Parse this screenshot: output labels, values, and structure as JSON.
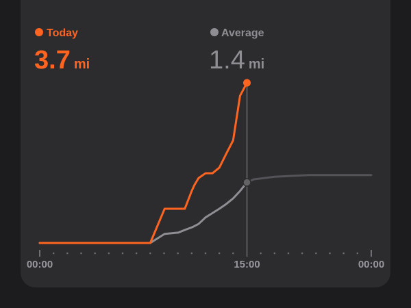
{
  "chart_data": {
    "type": "line",
    "x": [
      0,
      8,
      9.04,
      10.03,
      10.5,
      11,
      11.2,
      11.5,
      12,
      12.5,
      13,
      13.5,
      14,
      14.5,
      15,
      15.5,
      17,
      19.5,
      24
    ],
    "series": [
      {
        "name": "Today",
        "color": "#ff6421",
        "total": 3.7,
        "unit": "mi",
        "values": [
          0,
          0,
          0.79,
          0.79,
          0.79,
          1.2,
          1.34,
          1.5,
          1.61,
          1.61,
          1.74,
          2.06,
          2.37,
          3.4,
          3.7,
          null,
          null,
          null,
          null
        ]
      },
      {
        "name": "Average",
        "color": "#8e8e93",
        "total": 1.4,
        "unit": "mi",
        "values": [
          0,
          0,
          0.21,
          0.24,
          0.3,
          0.36,
          0.39,
          0.44,
          0.59,
          0.69,
          0.79,
          0.9,
          1.03,
          1.2,
          1.4,
          1.47,
          1.53,
          1.57,
          1.57
        ]
      }
    ],
    "xlim": [
      0,
      24
    ],
    "ylim": [
      0,
      3.7
    ],
    "xticks": [
      {
        "value": 0,
        "label": "00:00"
      },
      {
        "value": 15,
        "label": "15:00"
      },
      {
        "value": 24,
        "label": "00:00"
      }
    ],
    "minor_xticks": [
      1,
      2,
      3,
      4,
      5,
      6,
      7,
      8,
      9,
      10,
      11,
      12,
      13,
      14,
      16,
      17,
      18,
      19,
      20,
      21,
      22,
      23
    ]
  }
}
